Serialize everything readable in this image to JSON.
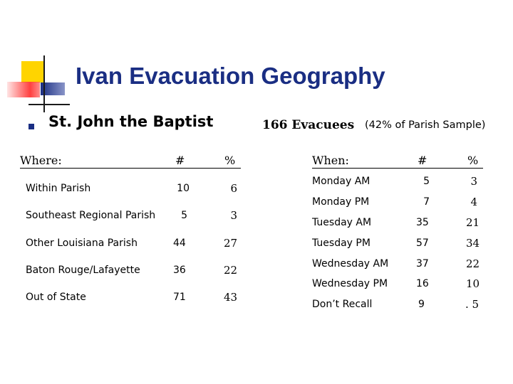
{
  "title": "Ivan Evacuation Geography",
  "subtitle": "St. John the Baptist",
  "evacuees": "166 Evacuees",
  "evacuees_note": "(42% of Parish Sample)",
  "where_table": {
    "headers": [
      "Where:",
      "#",
      "%"
    ],
    "rows": [
      {
        "label": "Within Parish",
        "count": "10",
        "pct": "6"
      },
      {
        "label": "Southeast Regional Parish",
        "count": "5",
        "pct": "3"
      },
      {
        "label": "Other Louisiana Parish",
        "count": "44",
        "pct": "27"
      },
      {
        "label": "Baton Rouge/Lafayette",
        "count": "36",
        "pct": "22"
      },
      {
        "label": "Out of State",
        "count": "71",
        "pct": "43"
      }
    ]
  },
  "when_table": {
    "headers": [
      "When:",
      "#",
      "%"
    ],
    "rows": [
      {
        "label": "Monday AM",
        "count": "5",
        "pct": "3"
      },
      {
        "label": "Monday PM",
        "count": "7",
        "pct": "4"
      },
      {
        "label": "Tuesday AM",
        "count": "35",
        "pct": "21"
      },
      {
        "label": "Tuesday PM",
        "count": "57",
        "pct": "34"
      },
      {
        "label": "Wednesday AM",
        "count": "37",
        "pct": "22"
      },
      {
        "label": "Wednesday PM",
        "count": "16",
        "pct": "10"
      },
      {
        "label": "Don’t Recall",
        "count": "9",
        "pct": ". 5"
      }
    ]
  },
  "colors": {
    "title": "#1a2e83",
    "logo_yellow": "#ffd400",
    "logo_red": "#ff4040",
    "logo_blue": "#1a2e83"
  }
}
